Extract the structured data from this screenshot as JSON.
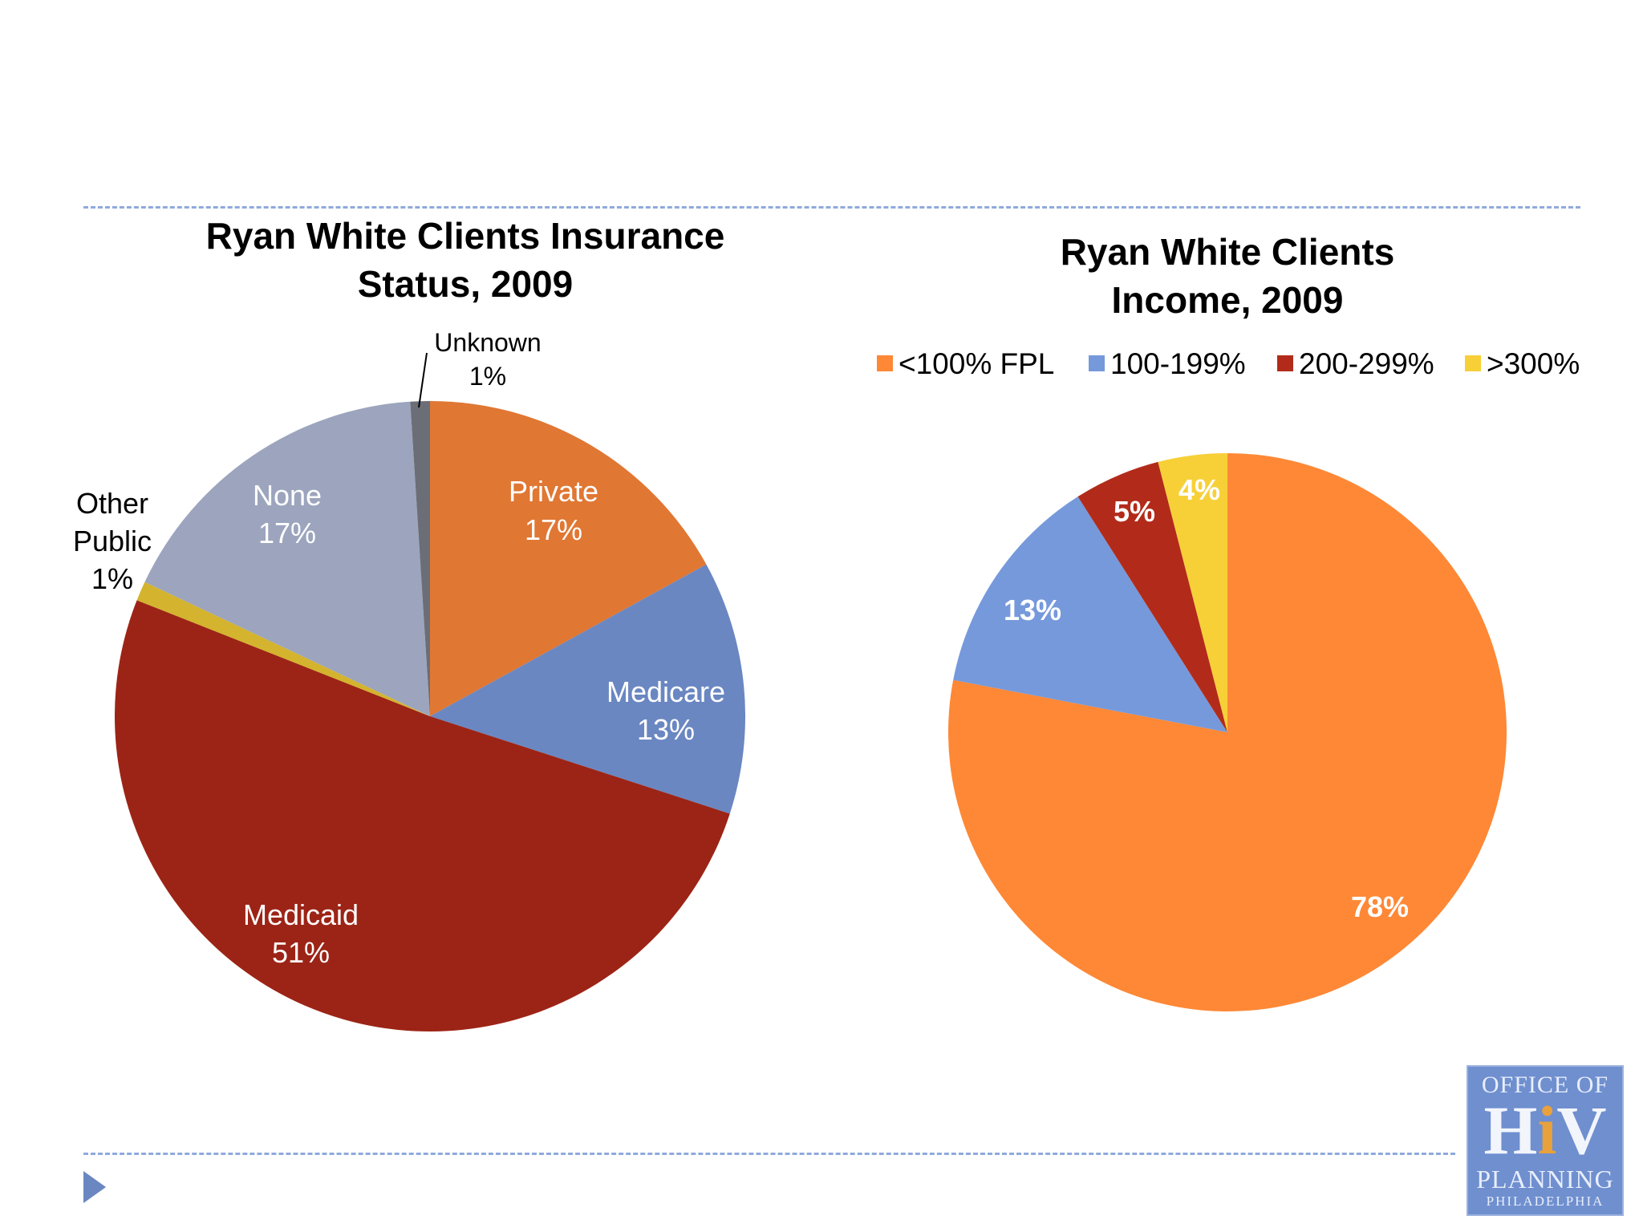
{
  "chart_data": [
    {
      "type": "pie",
      "title": "Ryan White Clients Insurance Status, 2009",
      "title_lines": [
        "Ryan White Clients Insurance",
        "Status, 2009"
      ],
      "slices": [
        {
          "name": "Private",
          "value": 17,
          "label": "17%",
          "color": "#e07733"
        },
        {
          "name": "Medicare",
          "value": 13,
          "label": "13%",
          "color": "#6a87c2"
        },
        {
          "name": "Medicaid",
          "value": 51,
          "label": "51%",
          "color": "#9c2416"
        },
        {
          "name_lines": [
            "Other",
            "Public"
          ],
          "value": 1,
          "label": "1%",
          "color": "#d4b32e"
        },
        {
          "name": "None",
          "value": 17,
          "label": "17%",
          "color": "#9ca5bd"
        },
        {
          "name": "Unknown",
          "value": 1,
          "label": "1%",
          "color": "#6b6e76"
        }
      ]
    },
    {
      "type": "pie",
      "title": "Ryan White Clients Income, 2009",
      "title_lines": [
        "Ryan White Clients",
        "Income, 2009"
      ],
      "legend_position": "top",
      "slices": [
        {
          "name": "<100% FPL",
          "value": 78,
          "label": "78%",
          "color": "#fe8836"
        },
        {
          "name": "100-199%",
          "value": 13,
          "label": "13%",
          "color": "#7699db"
        },
        {
          "name": "200-299%",
          "value": 5,
          "label": "5%",
          "color": "#b22b1a"
        },
        {
          "name": ">300%",
          "value": 4,
          "label": "4%",
          "color": "#f7d038"
        }
      ]
    }
  ],
  "logo": {
    "line1": "OFFICE OF",
    "h": "H",
    "i": "i",
    "v": "V",
    "line3": "PLANNING",
    "line4": "PHILADELPHIA"
  }
}
